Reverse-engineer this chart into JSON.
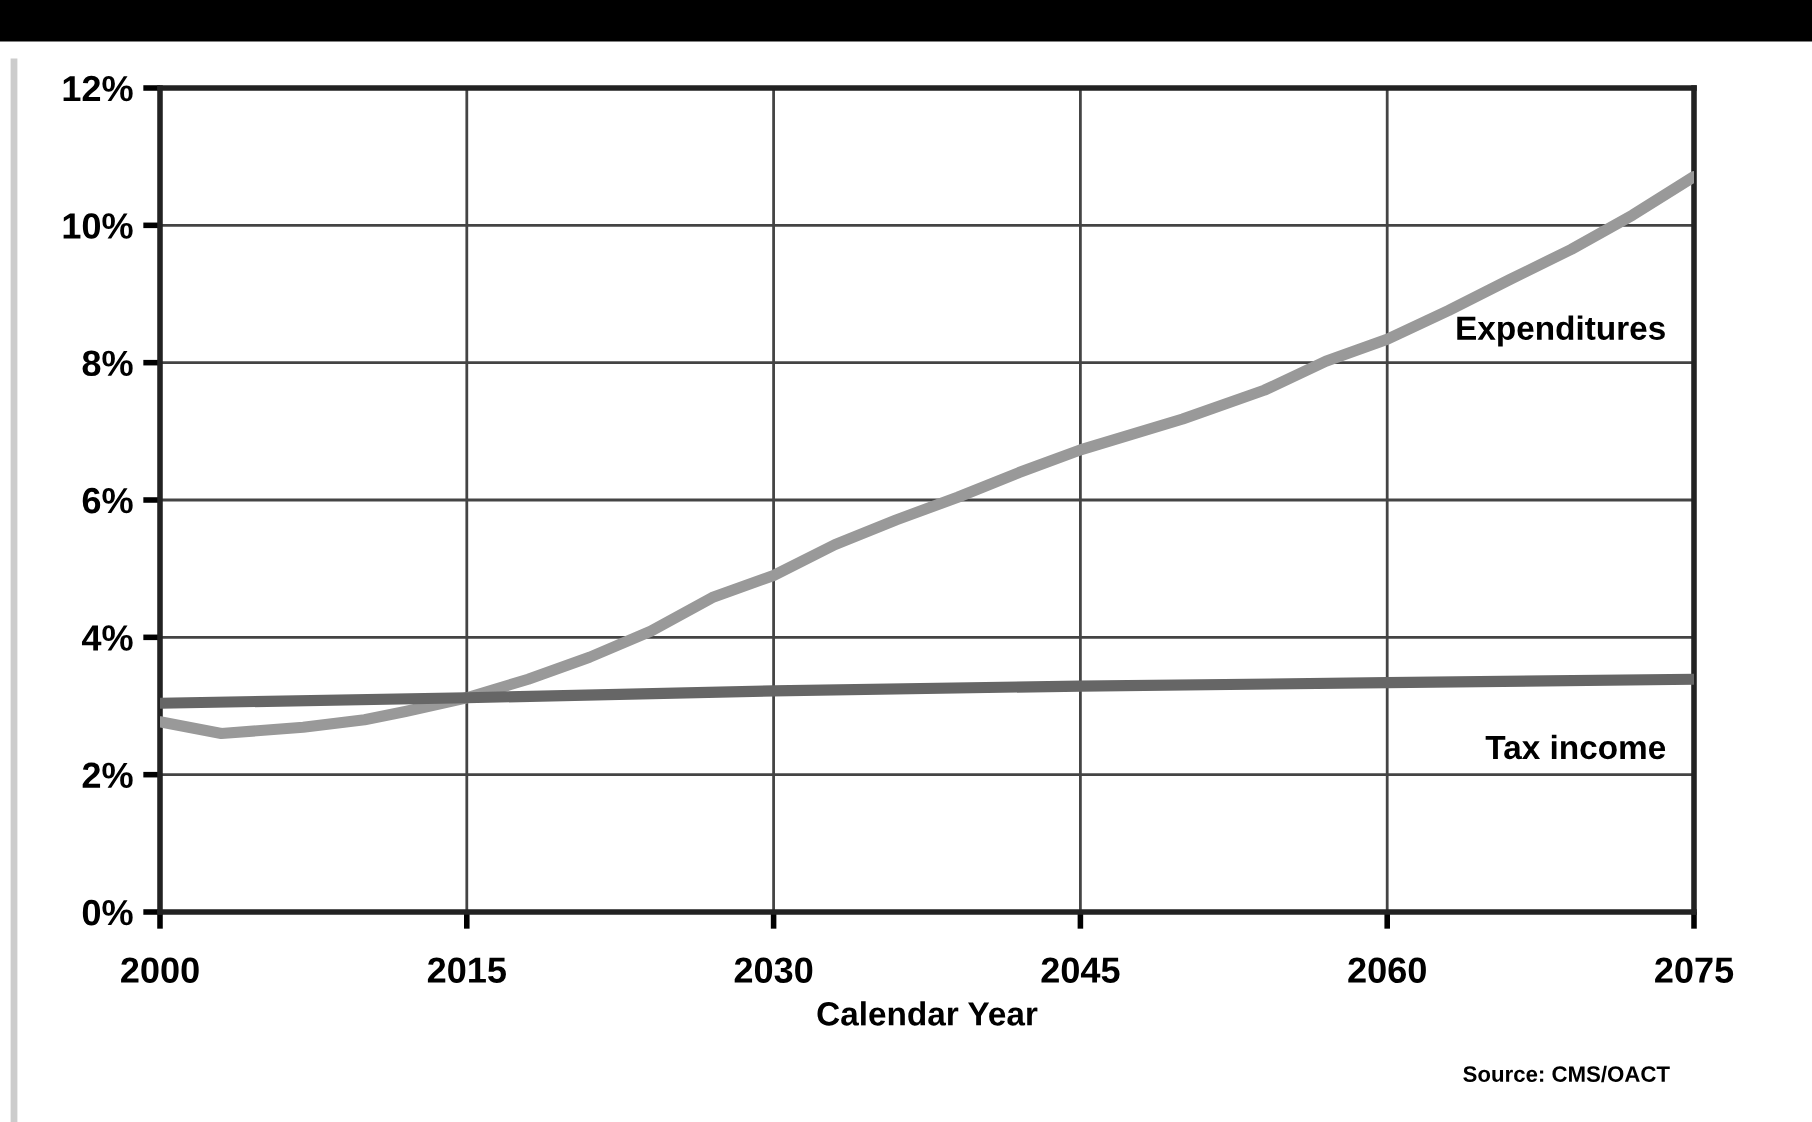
{
  "chart_data": {
    "type": "line",
    "xlabel": "Calendar Year",
    "xlim": [
      2000,
      2075
    ],
    "xticks": [
      2000,
      2015,
      2030,
      2045,
      2060,
      2075
    ],
    "ylim": [
      0,
      12
    ],
    "yticks": [
      {
        "value": 0,
        "label": "0%"
      },
      {
        "value": 2,
        "label": "2%"
      },
      {
        "value": 4,
        "label": "4%"
      },
      {
        "value": 6,
        "label": "6%"
      },
      {
        "value": 8,
        "label": "8%"
      },
      {
        "value": 10,
        "label": "10%"
      },
      {
        "value": 12,
        "label": "12%"
      }
    ],
    "grid": true,
    "legend": false,
    "line_style": "solid",
    "marker": "none",
    "series": [
      {
        "name": "Expenditures",
        "color": "#999999",
        "x": [
          2000,
          2003,
          2007,
          2010,
          2012,
          2015,
          2018,
          2021,
          2024,
          2027,
          2030,
          2033,
          2036,
          2039,
          2042,
          2045,
          2050,
          2054,
          2057,
          2060,
          2063,
          2066,
          2069,
          2072,
          2075
        ],
        "values": [
          2.77,
          2.6,
          2.69,
          2.8,
          2.92,
          3.12,
          3.39,
          3.71,
          4.09,
          4.58,
          4.9,
          5.35,
          5.71,
          6.04,
          6.4,
          6.73,
          7.18,
          7.6,
          8.02,
          8.34,
          8.76,
          9.21,
          9.65,
          10.15,
          10.71
        ]
      },
      {
        "name": "Tax income",
        "color": "#666666",
        "x": [
          2000,
          2015,
          2030,
          2045,
          2060,
          2075
        ],
        "values": [
          3.04,
          3.12,
          3.22,
          3.29,
          3.34,
          3.39
        ]
      }
    ],
    "annotations": [
      "Source: CMS/OACT"
    ]
  }
}
